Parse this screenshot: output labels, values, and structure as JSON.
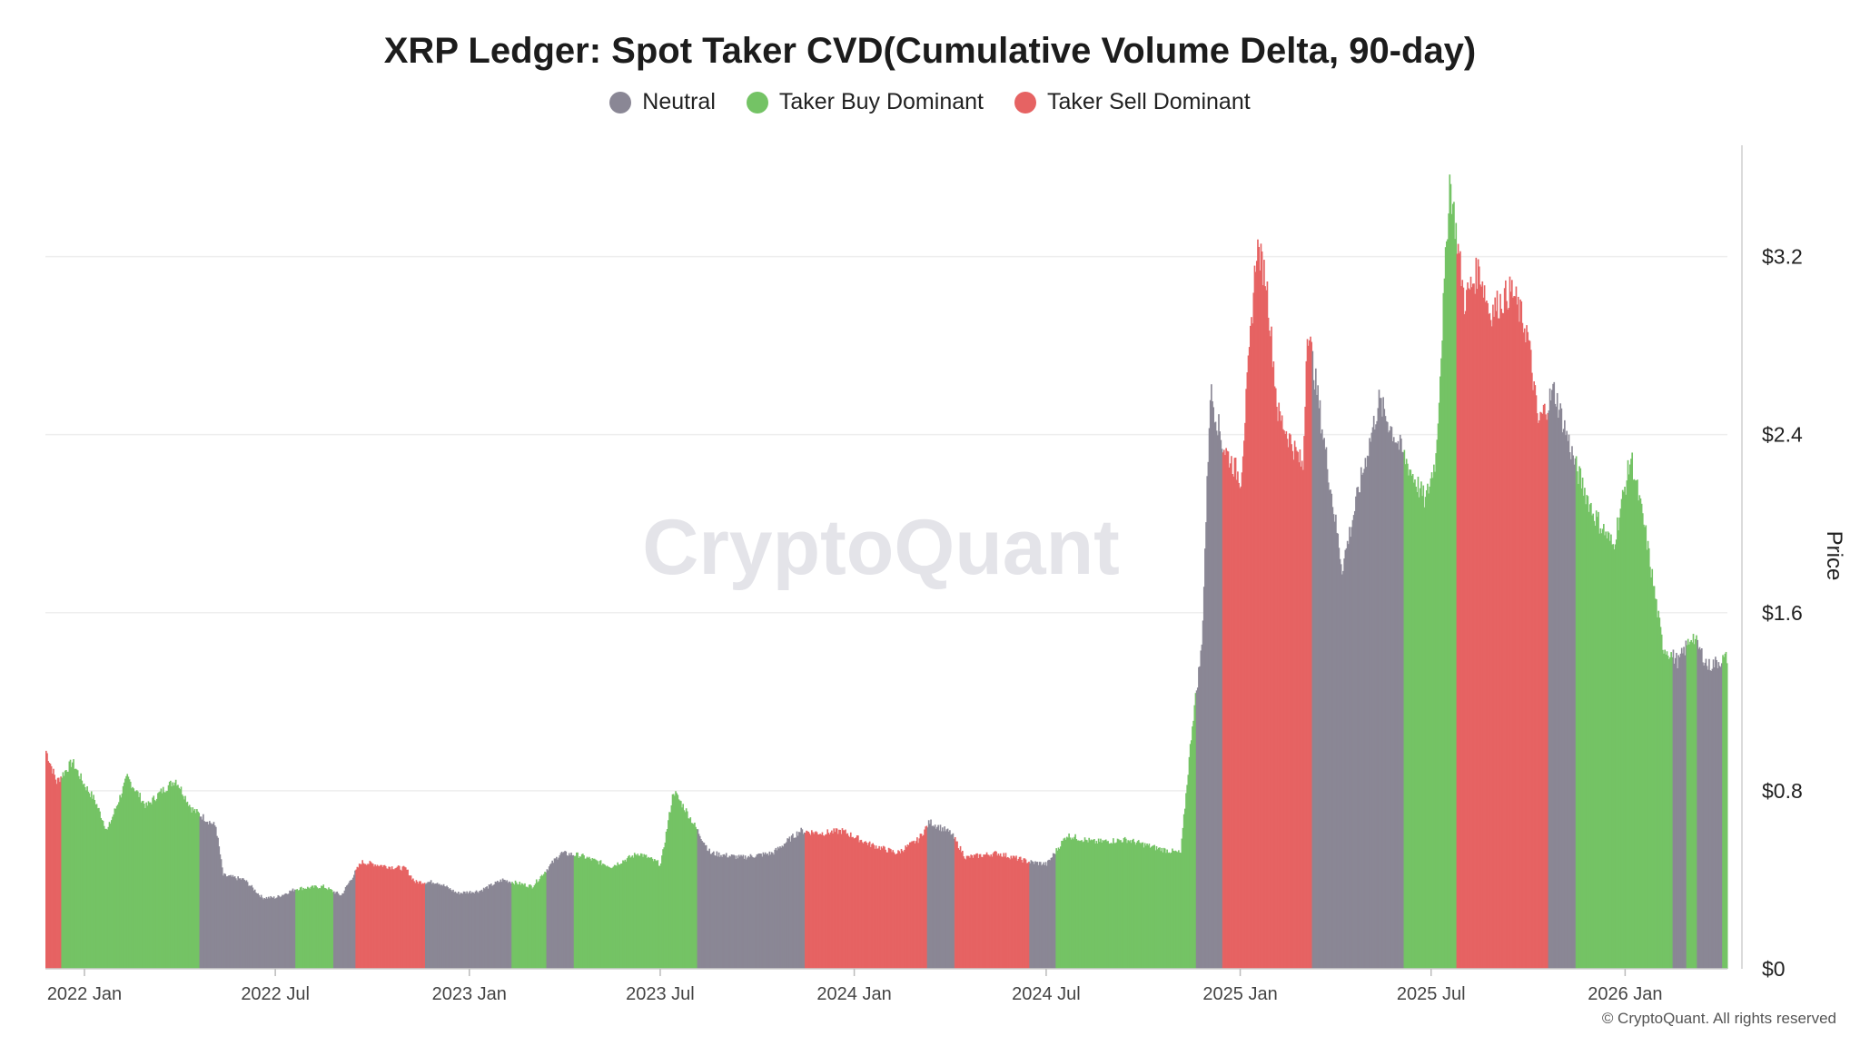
{
  "chart_data": {
    "type": "bar",
    "title": "XRP Ledger: Spot Taker CVD(Cumulative Volume Delta, 90-day)",
    "xlabel": "",
    "ylabel": "Price",
    "watermark": "CryptoQuant",
    "footer": "© CryptoQuant. All rights reserved",
    "ylim": [
      0,
      3.7
    ],
    "y_ticks": [
      {
        "value": 0,
        "label": "$0"
      },
      {
        "value": 0.8,
        "label": "$0.8"
      },
      {
        "value": 1.6,
        "label": "$1.6"
      },
      {
        "value": 2.4,
        "label": "$2.4"
      },
      {
        "value": 3.2,
        "label": "$3.2"
      }
    ],
    "x_ticks": [
      {
        "date": "2022-01-01",
        "label": "2022 Jan"
      },
      {
        "date": "2022-07-01",
        "label": "2022 Jul"
      },
      {
        "date": "2023-01-01",
        "label": "2023 Jan"
      },
      {
        "date": "2023-07-01",
        "label": "2023 Jul"
      },
      {
        "date": "2024-01-01",
        "label": "2024 Jan"
      },
      {
        "date": "2024-07-01",
        "label": "2024 Jul"
      },
      {
        "date": "2025-01-01",
        "label": "2025 Jan"
      },
      {
        "date": "2025-07-01",
        "label": "2025 Jul"
      },
      {
        "date": "2026-01-01",
        "label": "2026 Jan"
      }
    ],
    "x_range": [
      "2021-11-25",
      "2026-04-08"
    ],
    "grid": true,
    "legend_position": "top-center",
    "series": [
      {
        "name": "Neutral",
        "color": "#8a8795"
      },
      {
        "name": "Taker Buy Dominant",
        "color": "#74c365"
      },
      {
        "name": "Taker Sell Dominant",
        "color": "#e66363"
      }
    ],
    "price_points": [
      [
        "2021-11-25",
        0.98
      ],
      [
        "2021-12-05",
        0.84
      ],
      [
        "2021-12-20",
        0.93
      ],
      [
        "2021-12-31",
        0.83
      ],
      [
        "2022-01-10",
        0.76
      ],
      [
        "2022-01-22",
        0.62
      ],
      [
        "2022-02-10",
        0.86
      ],
      [
        "2022-02-28",
        0.73
      ],
      [
        "2022-03-15",
        0.8
      ],
      [
        "2022-03-28",
        0.85
      ],
      [
        "2022-04-12",
        0.72
      ],
      [
        "2022-05-05",
        0.64
      ],
      [
        "2022-05-12",
        0.42
      ],
      [
        "2022-06-01",
        0.4
      ],
      [
        "2022-06-18",
        0.32
      ],
      [
        "2022-07-01",
        0.32
      ],
      [
        "2022-07-20",
        0.36
      ],
      [
        "2022-08-15",
        0.37
      ],
      [
        "2022-09-01",
        0.33
      ],
      [
        "2022-09-20",
        0.48
      ],
      [
        "2022-10-15",
        0.46
      ],
      [
        "2022-11-01",
        0.45
      ],
      [
        "2022-11-10",
        0.39
      ],
      [
        "2022-12-01",
        0.39
      ],
      [
        "2022-12-20",
        0.34
      ],
      [
        "2023-01-10",
        0.35
      ],
      [
        "2023-02-01",
        0.4
      ],
      [
        "2023-03-01",
        0.37
      ],
      [
        "2023-03-28",
        0.52
      ],
      [
        "2023-04-15",
        0.51
      ],
      [
        "2023-05-15",
        0.46
      ],
      [
        "2023-06-10",
        0.52
      ],
      [
        "2023-07-01",
        0.47
      ],
      [
        "2023-07-13",
        0.8
      ],
      [
        "2023-07-25",
        0.71
      ],
      [
        "2023-08-17",
        0.52
      ],
      [
        "2023-09-15",
        0.5
      ],
      [
        "2023-10-15",
        0.52
      ],
      [
        "2023-11-10",
        0.62
      ],
      [
        "2023-12-01",
        0.61
      ],
      [
        "2023-12-20",
        0.62
      ],
      [
        "2024-01-15",
        0.56
      ],
      [
        "2024-02-10",
        0.52
      ],
      [
        "2024-03-01",
        0.58
      ],
      [
        "2024-03-12",
        0.66
      ],
      [
        "2024-04-01",
        0.61
      ],
      [
        "2024-04-15",
        0.5
      ],
      [
        "2024-05-15",
        0.52
      ],
      [
        "2024-06-15",
        0.48
      ],
      [
        "2024-07-01",
        0.47
      ],
      [
        "2024-07-20",
        0.6
      ],
      [
        "2024-08-15",
        0.57
      ],
      [
        "2024-09-15",
        0.58
      ],
      [
        "2024-10-15",
        0.54
      ],
      [
        "2024-11-05",
        0.52
      ],
      [
        "2024-11-16",
        1.1
      ],
      [
        "2024-11-25",
        1.45
      ],
      [
        "2024-12-03",
        2.6
      ],
      [
        "2024-12-15",
        2.35
      ],
      [
        "2025-01-01",
        2.2
      ],
      [
        "2025-01-16",
        3.25
      ],
      [
        "2025-01-25",
        3.1
      ],
      [
        "2025-02-05",
        2.5
      ],
      [
        "2025-03-01",
        2.25
      ],
      [
        "2025-03-05",
        2.9
      ],
      [
        "2025-03-20",
        2.4
      ],
      [
        "2025-04-07",
        1.8
      ],
      [
        "2025-04-25",
        2.2
      ],
      [
        "2025-05-12",
        2.55
      ],
      [
        "2025-06-05",
        2.3
      ],
      [
        "2025-06-25",
        2.1
      ],
      [
        "2025-07-05",
        2.3
      ],
      [
        "2025-07-18",
        3.55
      ],
      [
        "2025-08-01",
        3.0
      ],
      [
        "2025-08-15",
        3.15
      ],
      [
        "2025-08-25",
        2.95
      ],
      [
        "2025-09-15",
        3.05
      ],
      [
        "2025-09-30",
        2.85
      ],
      [
        "2025-10-10",
        2.45
      ],
      [
        "2025-10-25",
        2.6
      ],
      [
        "2025-11-15",
        2.25
      ],
      [
        "2025-12-01",
        2.05
      ],
      [
        "2025-12-20",
        1.9
      ],
      [
        "2026-01-06",
        2.3
      ],
      [
        "2026-01-20",
        1.95
      ],
      [
        "2026-02-05",
        1.45
      ],
      [
        "2026-02-20",
        1.38
      ],
      [
        "2026-03-05",
        1.5
      ],
      [
        "2026-03-20",
        1.36
      ],
      [
        "2026-04-08",
        1.4
      ]
    ],
    "regimes": [
      {
        "start": "2021-11-25",
        "end": "2021-12-10",
        "class": "Taker Sell Dominant"
      },
      {
        "start": "2021-12-10",
        "end": "2022-04-20",
        "class": "Taker Buy Dominant"
      },
      {
        "start": "2022-04-20",
        "end": "2022-07-20",
        "class": "Neutral"
      },
      {
        "start": "2022-07-20",
        "end": "2022-08-25",
        "class": "Taker Buy Dominant"
      },
      {
        "start": "2022-08-25",
        "end": "2022-09-15",
        "class": "Neutral"
      },
      {
        "start": "2022-09-15",
        "end": "2022-11-20",
        "class": "Taker Sell Dominant"
      },
      {
        "start": "2022-11-20",
        "end": "2023-02-10",
        "class": "Neutral"
      },
      {
        "start": "2023-02-10",
        "end": "2023-03-15",
        "class": "Taker Buy Dominant"
      },
      {
        "start": "2023-03-15",
        "end": "2023-04-10",
        "class": "Neutral"
      },
      {
        "start": "2023-04-10",
        "end": "2023-08-05",
        "class": "Taker Buy Dominant"
      },
      {
        "start": "2023-08-05",
        "end": "2023-11-15",
        "class": "Neutral"
      },
      {
        "start": "2023-11-15",
        "end": "2024-03-10",
        "class": "Taker Sell Dominant"
      },
      {
        "start": "2024-03-10",
        "end": "2024-04-05",
        "class": "Neutral"
      },
      {
        "start": "2024-04-05",
        "end": "2024-06-15",
        "class": "Taker Sell Dominant"
      },
      {
        "start": "2024-06-15",
        "end": "2024-07-10",
        "class": "Neutral"
      },
      {
        "start": "2024-07-10",
        "end": "2024-11-20",
        "class": "Taker Buy Dominant"
      },
      {
        "start": "2024-11-20",
        "end": "2024-12-15",
        "class": "Neutral"
      },
      {
        "start": "2024-12-15",
        "end": "2025-03-10",
        "class": "Taker Sell Dominant"
      },
      {
        "start": "2025-03-10",
        "end": "2025-06-05",
        "class": "Neutral"
      },
      {
        "start": "2025-06-05",
        "end": "2025-07-25",
        "class": "Taker Buy Dominant"
      },
      {
        "start": "2025-07-25",
        "end": "2025-10-20",
        "class": "Taker Sell Dominant"
      },
      {
        "start": "2025-10-20",
        "end": "2025-11-15",
        "class": "Neutral"
      },
      {
        "start": "2025-11-15",
        "end": "2026-02-15",
        "class": "Taker Buy Dominant"
      },
      {
        "start": "2026-02-15",
        "end": "2026-02-28",
        "class": "Neutral"
      },
      {
        "start": "2026-02-28",
        "end": "2026-03-10",
        "class": "Taker Buy Dominant"
      },
      {
        "start": "2026-03-10",
        "end": "2026-04-03",
        "class": "Neutral"
      },
      {
        "start": "2026-04-03",
        "end": "2026-04-08",
        "class": "Taker Buy Dominant"
      }
    ]
  }
}
